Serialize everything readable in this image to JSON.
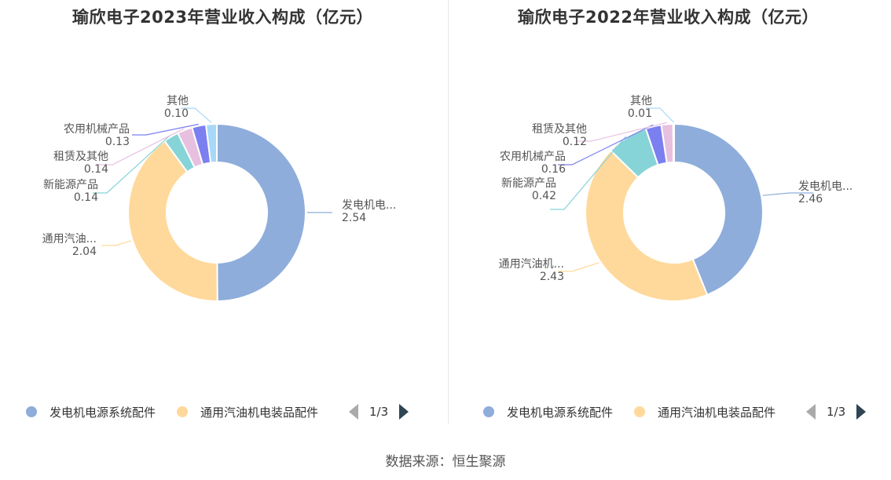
{
  "source": "数据来源：恒生聚源",
  "colors": {
    "发电机电源系统配件": "#8eaddb",
    "通用汽油机电装品配件": "#ffd99b",
    "新能源产品": "#86d4d8",
    "租赁及其他": "#e7c0e0",
    "农用机械产品": "#7b7ff0",
    "其他": "#a7d8f8"
  },
  "chart_data": [
    {
      "type": "pie",
      "title": "瑜欣电子2023年营业收入构成（亿元）",
      "donut": true,
      "slices": [
        {
          "name": "发电机电源系统配件",
          "short": "发电机电...",
          "value": 2.54,
          "value_label": "2.54"
        },
        {
          "name": "通用汽油机电装品配件",
          "short": "通用汽油...",
          "value": 2.04,
          "value_label": "2.04"
        },
        {
          "name": "新能源产品",
          "short": "新能源产品",
          "value": 0.14,
          "value_label": "0.14"
        },
        {
          "name": "租赁及其他",
          "short": "租赁及其他",
          "value": 0.14,
          "value_label": "0.14"
        },
        {
          "name": "农用机械产品",
          "short": "农用机械产品",
          "value": 0.13,
          "value_label": "0.13"
        },
        {
          "name": "其他",
          "short": "其他",
          "value": 0.1,
          "value_label": "0.10"
        }
      ],
      "legend": {
        "items": [
          "发电机电源系统配件",
          "通用汽油机电装品配件"
        ],
        "page": "1/3"
      }
    },
    {
      "type": "pie",
      "title": "瑜欣电子2022年营业收入构成（亿元）",
      "donut": true,
      "slices": [
        {
          "name": "发电机电源系统配件",
          "short": "发电机电...",
          "value": 2.46,
          "value_label": "2.46"
        },
        {
          "name": "通用汽油机电装品配件",
          "short": "通用汽油机...",
          "value": 2.43,
          "value_label": "2.43"
        },
        {
          "name": "新能源产品",
          "short": "新能源产品",
          "value": 0.42,
          "value_label": "0.42"
        },
        {
          "name": "农用机械产品",
          "short": "农用机械产品",
          "value": 0.16,
          "value_label": "0.16"
        },
        {
          "name": "租赁及其他",
          "short": "租赁及其他",
          "value": 0.12,
          "value_label": "0.12"
        },
        {
          "name": "其他",
          "short": "其他",
          "value": 0.01,
          "value_label": "0.01"
        }
      ],
      "legend": {
        "items": [
          "发电机电源系统配件",
          "通用汽油机电装品配件"
        ],
        "page": "1/3"
      }
    }
  ]
}
